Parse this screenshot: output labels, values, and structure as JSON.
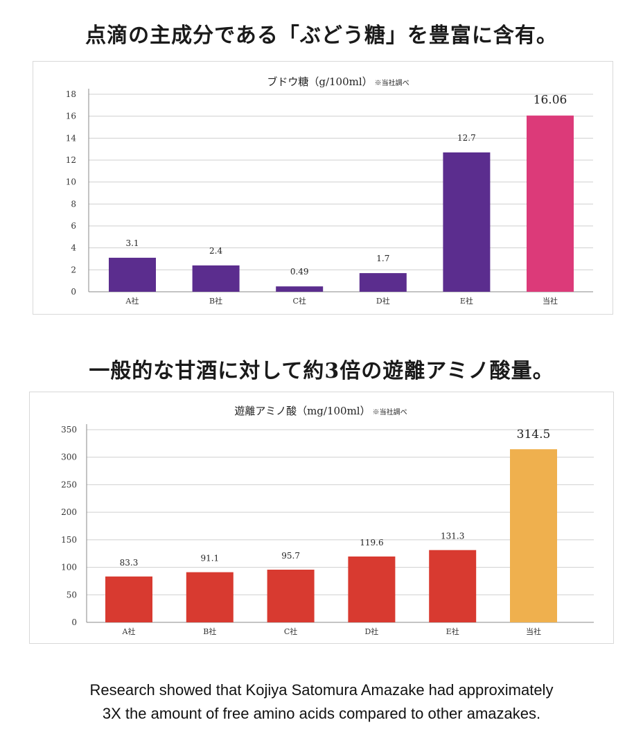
{
  "headings": {
    "top": "点滴の主成分である「ぶどう糖」を豊富に含有。",
    "middle": "一般的な甘酒に対して約3倍の遊離アミノ酸量。"
  },
  "chart_data": [
    {
      "type": "bar",
      "title": "ブドウ糖（g/100ml）",
      "note": "※当社調べ",
      "categories": [
        "A社",
        "B社",
        "C社",
        "D社",
        "E社",
        "当社"
      ],
      "values": [
        3.1,
        2.4,
        0.49,
        1.7,
        12.7,
        16.06
      ],
      "value_labels": [
        "3.1",
        "2.4",
        "0.49",
        "1.7",
        "12.7",
        "16.06"
      ],
      "colors": [
        "#5b2d8e",
        "#5b2d8e",
        "#5b2d8e",
        "#5b2d8e",
        "#5b2d8e",
        "#dc3a79"
      ],
      "ylim": [
        0,
        18
      ],
      "yticks": [
        0,
        2,
        4,
        6,
        8,
        10,
        12,
        14,
        16,
        18
      ],
      "xlabel": "",
      "ylabel": "",
      "grid": true
    },
    {
      "type": "bar",
      "title": "遊離アミノ酸（mg/100ml）",
      "note": "※当社調べ",
      "categories": [
        "A社",
        "B社",
        "C社",
        "D社",
        "E社",
        "当社"
      ],
      "values": [
        83.3,
        91.1,
        95.7,
        119.6,
        131.3,
        314.5
      ],
      "value_labels": [
        "83.3",
        "91.1",
        "95.7",
        "119.6",
        "131.3",
        "314.5"
      ],
      "colors": [
        "#d83a30",
        "#d83a30",
        "#d83a30",
        "#d83a30",
        "#d83a30",
        "#efb04e"
      ],
      "ylim": [
        0,
        350
      ],
      "yticks": [
        0,
        50,
        100,
        150,
        200,
        250,
        300,
        350
      ],
      "xlabel": "",
      "ylabel": "",
      "grid": true
    }
  ],
  "caption": {
    "line1": "Research showed that Kojiya Satomura Amazake had approximately",
    "line2": "3X the amount of free amino acids compared to other amazakes."
  }
}
